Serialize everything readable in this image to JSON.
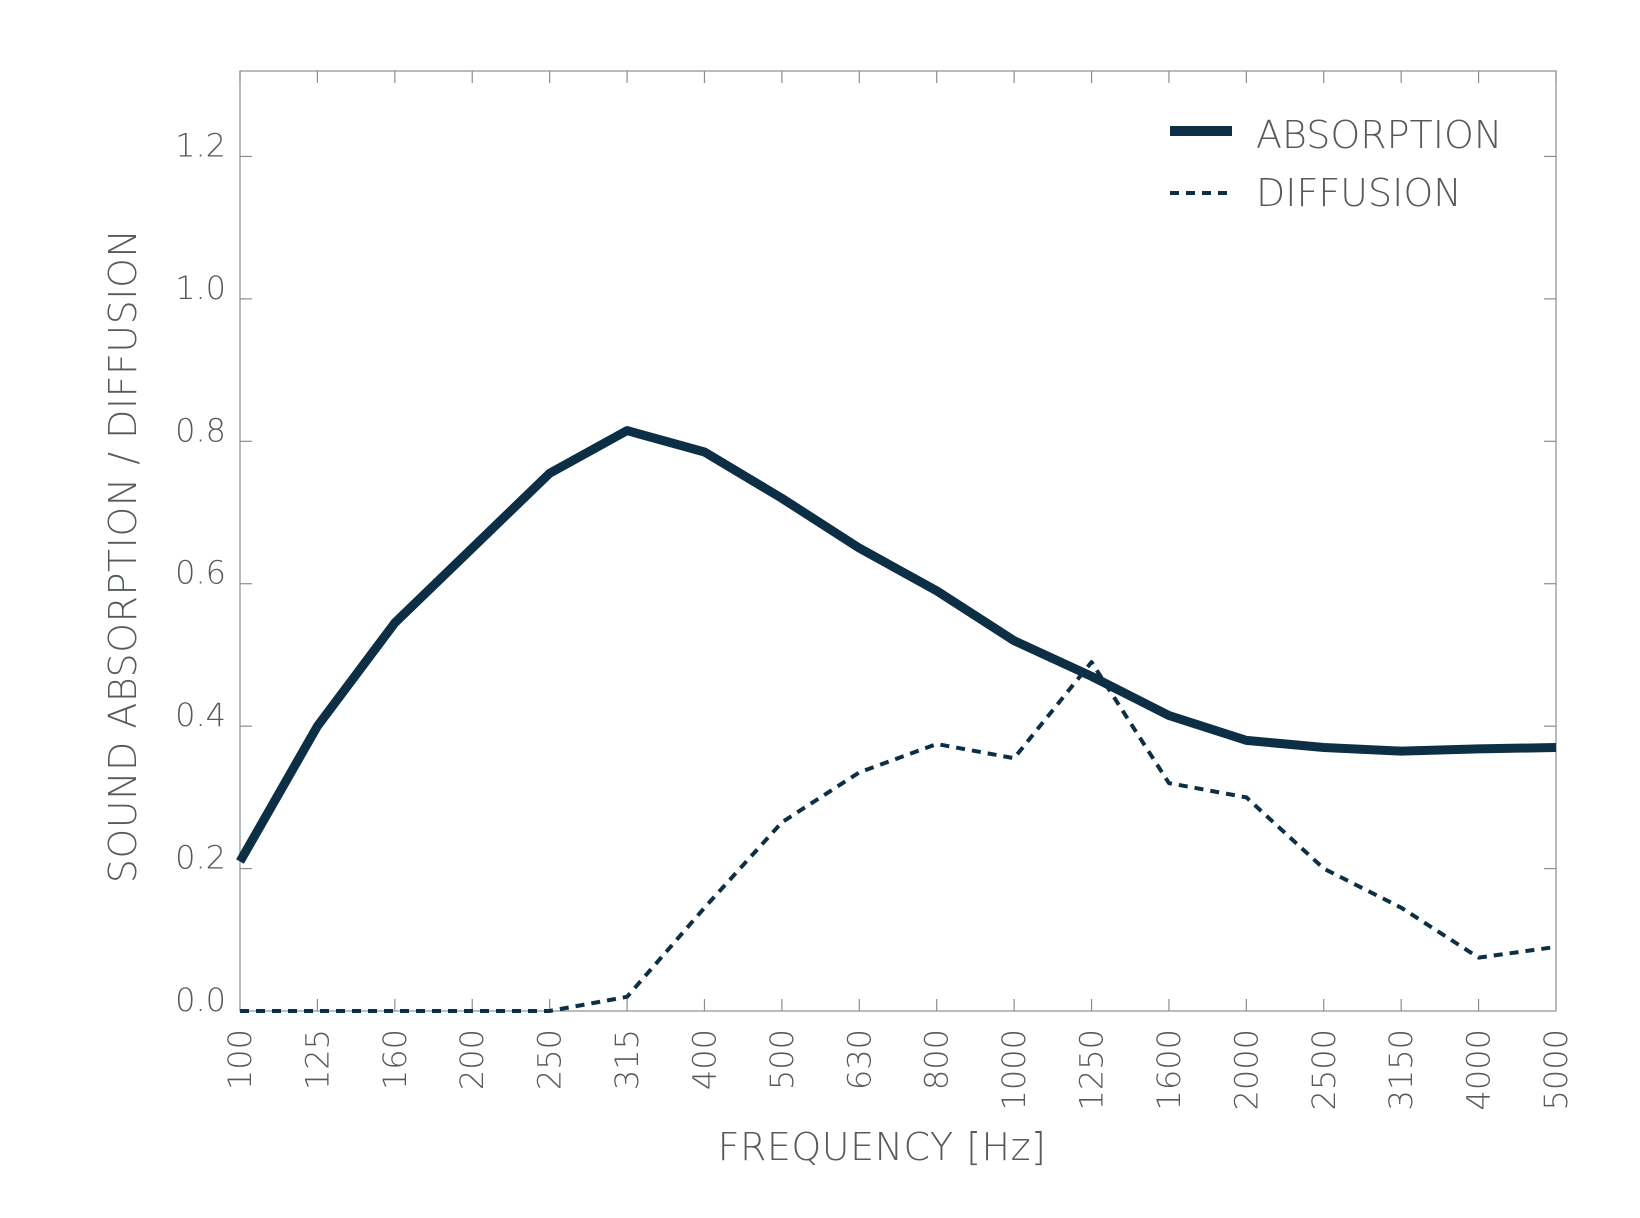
{
  "chart_data": {
    "type": "line",
    "xlabel": "FREQUENCY [Hz]",
    "ylabel": "SOUND ABSORPTION / DIFFUSION",
    "categories": [
      "100",
      "125",
      "160",
      "200",
      "250",
      "315",
      "400",
      "500",
      "630",
      "800",
      "1000",
      "1250",
      "1600",
      "2000",
      "2500",
      "3150",
      "4000",
      "5000"
    ],
    "ylim": [
      0,
      1.32
    ],
    "yticks": [
      "0.0",
      "0.2",
      "0.4",
      "0.6",
      "0.8",
      "1.0",
      "1.2"
    ],
    "legend_position": "top-right",
    "grid": false,
    "series": [
      {
        "name": "ABSORPTION",
        "style": "solid",
        "color": "#0d2f45",
        "values": [
          0.21,
          0.4,
          0.545,
          0.65,
          0.755,
          0.815,
          0.785,
          0.72,
          0.65,
          0.59,
          0.52,
          0.47,
          0.415,
          0.38,
          0.37,
          0.365,
          0.368,
          0.37
        ]
      },
      {
        "name": "DIFFUSION",
        "style": "dashed",
        "color": "#0d2f45",
        "values": [
          0.0,
          0.0,
          0.0,
          0.0,
          0.0,
          0.02,
          0.145,
          0.265,
          0.335,
          0.375,
          0.355,
          0.49,
          0.32,
          0.3,
          0.2,
          0.145,
          0.075,
          0.09
        ]
      }
    ]
  }
}
